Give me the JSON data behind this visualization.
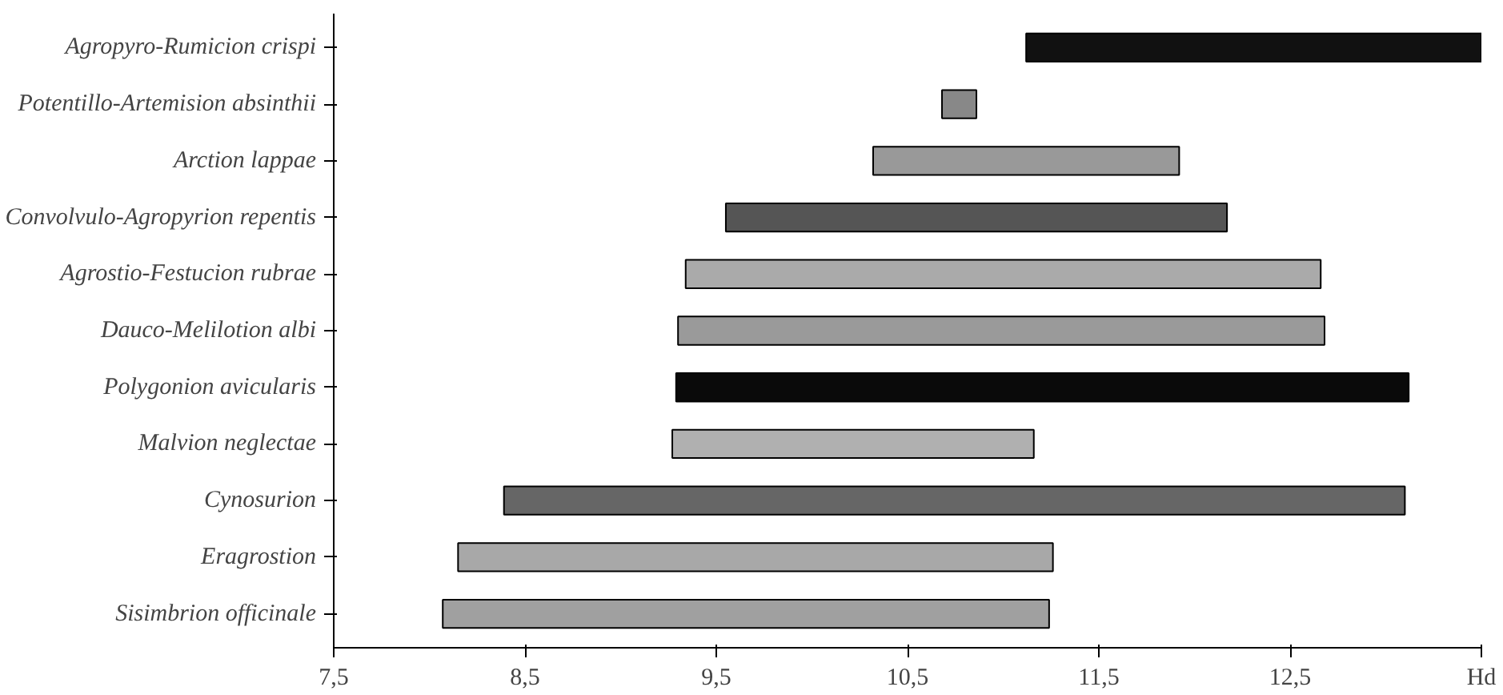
{
  "chart_data": {
    "type": "bar",
    "orientation": "horizontal",
    "categories": [
      "Agropyro-Rumicion crispi",
      "Potentillo-Artemision absinthii",
      "Arction lappae",
      "Convolvulo-Agropyrion repentis",
      "Agrostio-Festucion rubrae",
      "Dauco-Melilotion albi",
      "Polygonion avicularis",
      "Malvion neglectae",
      "Cynosurion",
      "Eragrostion",
      "Sisimbrion officinale"
    ],
    "base": [
      11.12,
      10.68,
      10.32,
      9.55,
      9.34,
      9.3,
      9.29,
      9.27,
      8.39,
      8.15,
      8.07
    ],
    "values": [
      2.38,
      0.18,
      1.6,
      2.62,
      3.32,
      3.38,
      3.83,
      1.89,
      4.71,
      3.11,
      3.17
    ],
    "colors": [
      "#111111",
      "#888888",
      "#999999",
      "#555555",
      "#aaaaaa",
      "#9a9a9a",
      "#0a0a0a",
      "#b0b0b0",
      "#666666",
      "#a8a8a8",
      "#a0a0a0"
    ],
    "xlim": [
      7.5,
      13.5
    ],
    "xticks": [
      {
        "value": 7.5,
        "label": "7,5"
      },
      {
        "value": 8.5,
        "label": "8,5"
      },
      {
        "value": 9.5,
        "label": "9,5"
      },
      {
        "value": 10.5,
        "label": "10,5"
      },
      {
        "value": 11.5,
        "label": "11,5"
      },
      {
        "value": 12.5,
        "label": "12,5"
      },
      {
        "value": 13.5,
        "label": "Hd"
      }
    ],
    "grid": false
  }
}
